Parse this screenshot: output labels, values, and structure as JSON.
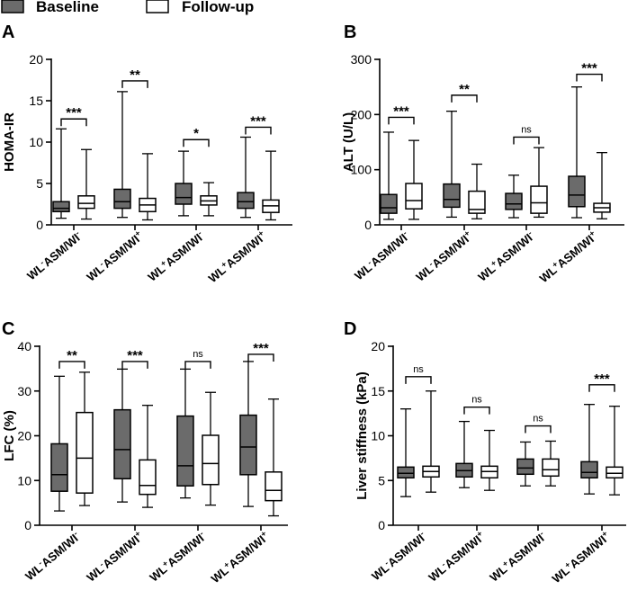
{
  "legend": {
    "baseline_label": "Baseline",
    "followup_label": "Follow-up",
    "baseline_color": "#6b6b6b",
    "followup_color": "#ffffff"
  },
  "chart_data": [
    {
      "panel": "A",
      "type": "boxplot",
      "ylabel": "HOMA-IR",
      "ylim": [
        0,
        20
      ],
      "yticks": [
        0,
        5,
        10,
        15,
        20
      ],
      "categories": [
        {
          "pre": "WL",
          "s1": "-",
          "mid": "ASM/WI",
          "s2": "-"
        },
        {
          "pre": "WL",
          "s1": "-",
          "mid": "ASM/WI",
          "s2": "+"
        },
        {
          "pre": "WL",
          "s1": "+",
          "mid": "ASM/WI",
          "s2": "-"
        },
        {
          "pre": "WL",
          "s1": "+",
          "mid": "ASM/WI",
          "s2": "+"
        }
      ],
      "series": [
        {
          "name": "Baseline",
          "boxes": [
            {
              "min": 0.8,
              "q1": 1.6,
              "median": 2.0,
              "q3": 2.8,
              "max": 11.6
            },
            {
              "min": 0.9,
              "q1": 2.0,
              "median": 2.8,
              "q3": 4.3,
              "max": 16.1
            },
            {
              "min": 1.1,
              "q1": 2.5,
              "median": 3.3,
              "q3": 5.0,
              "max": 8.9
            },
            {
              "min": 0.9,
              "q1": 2.0,
              "median": 2.8,
              "q3": 3.9,
              "max": 10.6
            }
          ]
        },
        {
          "name": "Follow-up",
          "boxes": [
            {
              "min": 0.7,
              "q1": 2.0,
              "median": 2.6,
              "q3": 3.5,
              "max": 9.1
            },
            {
              "min": 0.6,
              "q1": 1.6,
              "median": 2.4,
              "q3": 3.2,
              "max": 8.6
            },
            {
              "min": 1.1,
              "q1": 2.4,
              "median": 2.9,
              "q3": 3.5,
              "max": 5.1
            },
            {
              "min": 0.6,
              "q1": 1.5,
              "median": 2.3,
              "q3": 3.0,
              "max": 8.9
            }
          ]
        }
      ],
      "significance": [
        {
          "label": "***",
          "y": 12.8
        },
        {
          "label": "**",
          "y": 17.4
        },
        {
          "label": "*",
          "y": 10.3
        },
        {
          "label": "***",
          "y": 11.8
        }
      ]
    },
    {
      "panel": "B",
      "type": "boxplot",
      "ylabel": "ALT (U/L)",
      "ylim": [
        0,
        300
      ],
      "yticks": [
        0,
        100,
        200,
        300
      ],
      "categories": [
        {
          "pre": "WL",
          "s1": "-",
          "mid": "ASM/WI",
          "s2": "-"
        },
        {
          "pre": "WL",
          "s1": "-",
          "mid": "ASM/WI",
          "s2": "+"
        },
        {
          "pre": "WL",
          "s1": "+",
          "mid": "ASM/WI",
          "s2": "-"
        },
        {
          "pre": "WL",
          "s1": "+",
          "mid": "ASM/WI",
          "s2": "+"
        }
      ],
      "series": [
        {
          "name": "Baseline",
          "boxes": [
            {
              "min": 10,
              "q1": 21,
              "median": 31,
              "q3": 55,
              "max": 168
            },
            {
              "min": 14,
              "q1": 32,
              "median": 46,
              "q3": 74,
              "max": 206
            },
            {
              "min": 13,
              "q1": 28,
              "median": 38,
              "q3": 57,
              "max": 90
            },
            {
              "min": 13,
              "q1": 33,
              "median": 54,
              "q3": 88,
              "max": 250
            }
          ]
        },
        {
          "name": "Follow-up",
          "boxes": [
            {
              "min": 10,
              "q1": 29,
              "median": 44,
              "q3": 75,
              "max": 153
            },
            {
              "min": 11,
              "q1": 21,
              "median": 28,
              "q3": 61,
              "max": 110
            },
            {
              "min": 14,
              "q1": 21,
              "median": 40,
              "q3": 70,
              "max": 140
            },
            {
              "min": 11,
              "q1": 23,
              "median": 31,
              "q3": 39,
              "max": 131
            }
          ]
        }
      ],
      "significance": [
        {
          "label": "***",
          "y": 195
        },
        {
          "label": "**",
          "y": 235
        },
        {
          "label": "ns",
          "y": 159
        },
        {
          "label": "***",
          "y": 273
        }
      ]
    },
    {
      "panel": "C",
      "type": "boxplot",
      "ylabel": "LFC (%)",
      "ylim": [
        0,
        40
      ],
      "yticks": [
        0,
        10,
        20,
        30,
        40
      ],
      "categories": [
        {
          "pre": "WL",
          "s1": "-",
          "mid": "ASM/WI",
          "s2": "-"
        },
        {
          "pre": "WL",
          "s1": "-",
          "mid": "ASM/WI",
          "s2": "+"
        },
        {
          "pre": "WL",
          "s1": "+",
          "mid": "ASM/WI",
          "s2": "-"
        },
        {
          "pre": "WL",
          "s1": "+",
          "mid": "ASM/WI",
          "s2": "+"
        }
      ],
      "series": [
        {
          "name": "Baseline",
          "boxes": [
            {
              "min": 3.2,
              "q1": 7.6,
              "median": 11.3,
              "q3": 18.2,
              "max": 33.3
            },
            {
              "min": 5.2,
              "q1": 10.4,
              "median": 16.9,
              "q3": 25.8,
              "max": 34.9
            },
            {
              "min": 6.1,
              "q1": 8.8,
              "median": 13.3,
              "q3": 24.4,
              "max": 34.9
            },
            {
              "min": 4.2,
              "q1": 11.3,
              "median": 17.5,
              "q3": 24.6,
              "max": 36.6
            }
          ]
        },
        {
          "name": "Follow-up",
          "boxes": [
            {
              "min": 4.4,
              "q1": 7.2,
              "median": 15.0,
              "q3": 25.2,
              "max": 34.2
            },
            {
              "min": 4.0,
              "q1": 6.9,
              "median": 8.9,
              "q3": 14.6,
              "max": 26.8
            },
            {
              "min": 4.5,
              "q1": 9.1,
              "median": 13.8,
              "q3": 20.1,
              "max": 29.7
            },
            {
              "min": 2.1,
              "q1": 5.5,
              "median": 7.8,
              "q3": 11.9,
              "max": 28.2
            }
          ]
        }
      ],
      "significance": [
        {
          "label": "**",
          "y": 36.6
        },
        {
          "label": "***",
          "y": 36.6
        },
        {
          "label": "ns",
          "y": 36.6
        },
        {
          "label": "***",
          "y": 38.2
        }
      ]
    },
    {
      "panel": "D",
      "type": "boxplot",
      "ylabel": "Liver stiffness (kPa)",
      "ylim": [
        0,
        20
      ],
      "yticks": [
        0,
        5,
        10,
        15,
        20
      ],
      "categories": [
        {
          "pre": "WL",
          "s1": "-",
          "mid": "ASM/WI",
          "s2": "-"
        },
        {
          "pre": "WL",
          "s1": "-",
          "mid": "ASM/WI",
          "s2": "+"
        },
        {
          "pre": "WL",
          "s1": "+",
          "mid": "ASM/WI",
          "s2": "-"
        },
        {
          "pre": "WL",
          "s1": "+",
          "mid": "ASM/WI",
          "s2": "+"
        }
      ],
      "series": [
        {
          "name": "Baseline",
          "boxes": [
            {
              "min": 3.2,
              "q1": 5.3,
              "median": 5.8,
              "q3": 6.5,
              "max": 13.0
            },
            {
              "min": 4.2,
              "q1": 5.4,
              "median": 6.1,
              "q3": 6.9,
              "max": 11.6
            },
            {
              "min": 4.4,
              "q1": 5.7,
              "median": 6.4,
              "q3": 7.4,
              "max": 9.3
            },
            {
              "min": 3.5,
              "q1": 5.3,
              "median": 5.9,
              "q3": 7.1,
              "max": 13.5
            }
          ]
        },
        {
          "name": "Follow-up",
          "boxes": [
            {
              "min": 3.7,
              "q1": 5.4,
              "median": 6.0,
              "q3": 6.6,
              "max": 15.0
            },
            {
              "min": 3.9,
              "q1": 5.3,
              "median": 6.0,
              "q3": 6.6,
              "max": 10.6
            },
            {
              "min": 4.4,
              "q1": 5.5,
              "median": 6.2,
              "q3": 7.4,
              "max": 9.4
            },
            {
              "min": 3.4,
              "q1": 5.3,
              "median": 5.8,
              "q3": 6.5,
              "max": 13.3
            }
          ]
        }
      ],
      "significance": [
        {
          "label": "ns",
          "y": 16.6
        },
        {
          "label": "ns",
          "y": 13.2
        },
        {
          "label": "ns",
          "y": 11.1
        },
        {
          "label": "***",
          "y": 15.7
        }
      ]
    }
  ]
}
